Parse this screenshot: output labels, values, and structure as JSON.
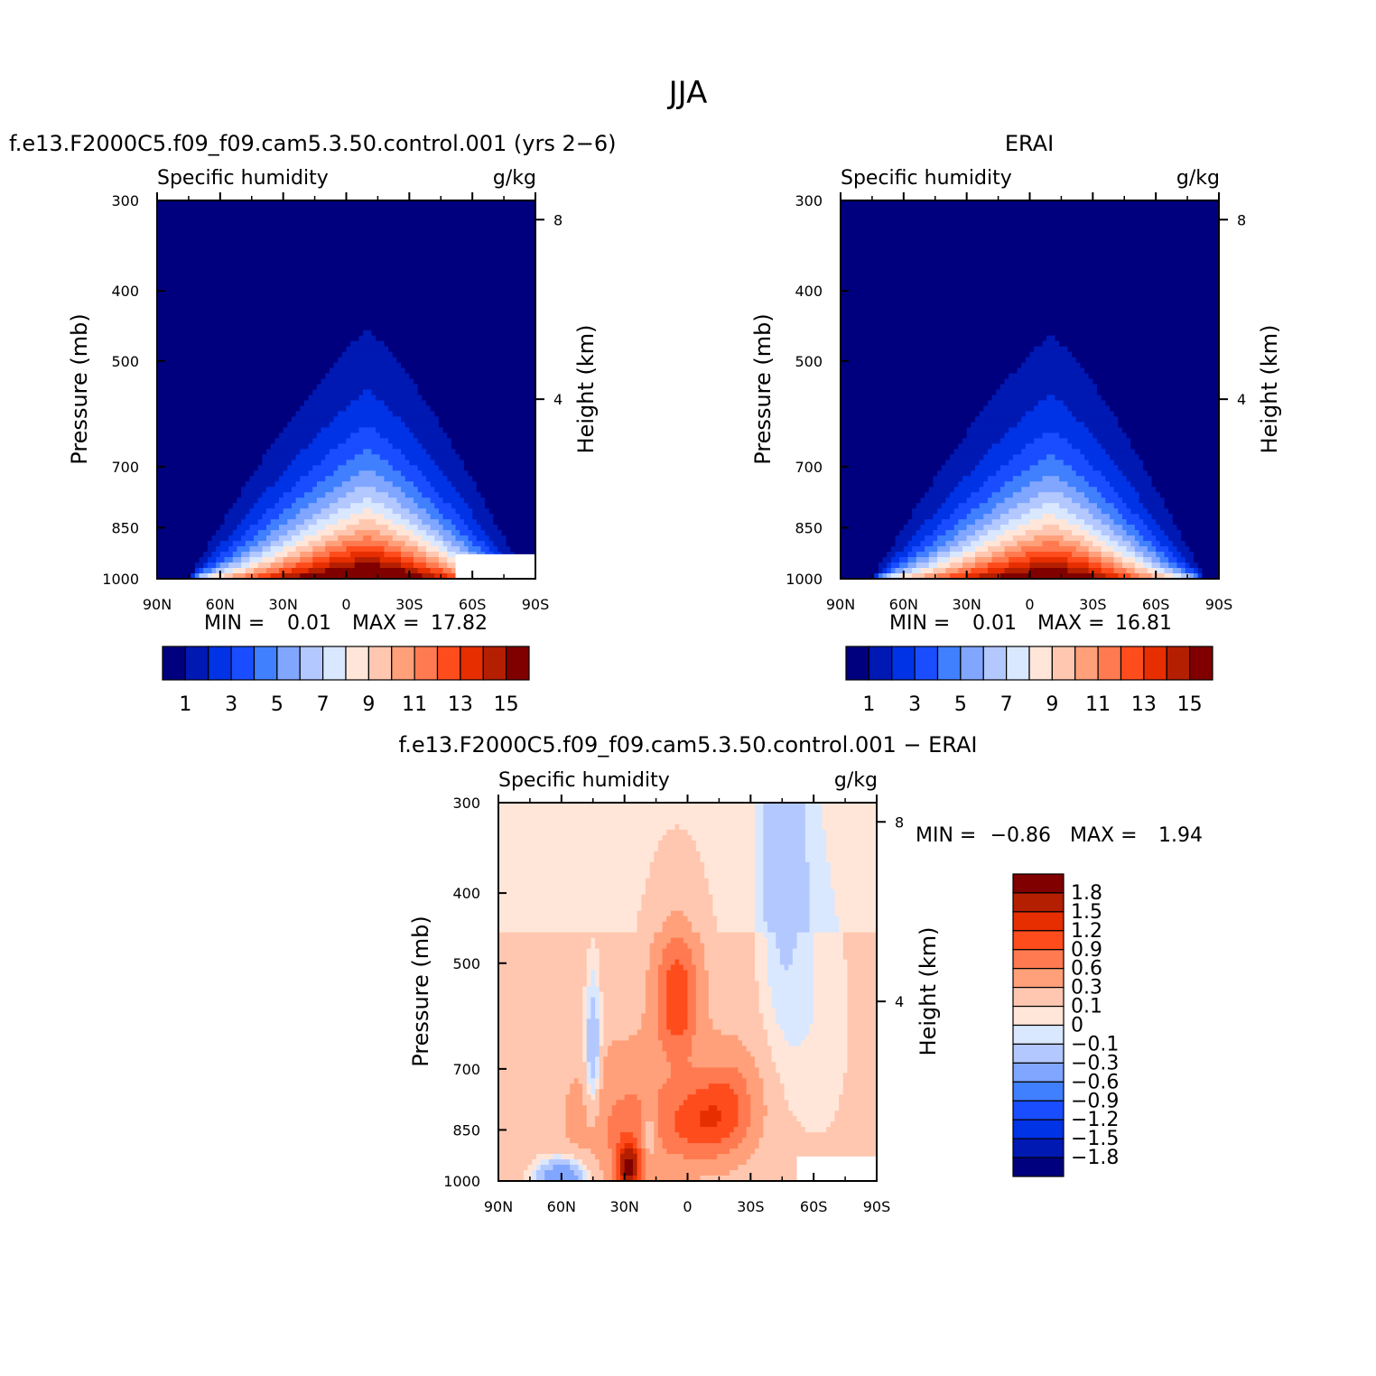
{
  "figure": {
    "main_title": "JJA"
  },
  "palettes": {
    "abs": [
      "#00007f",
      "#0019b3",
      "#0033e6",
      "#1a4dff",
      "#4080ff",
      "#80a6ff",
      "#b3c8ff",
      "#d9e8ff",
      "#ffe6d9",
      "#ffc7b0",
      "#ffa07a",
      "#ff7a50",
      "#ff4c1c",
      "#e62e00",
      "#b31f00",
      "#800000"
    ],
    "diff": [
      "#00007f",
      "#0019b3",
      "#0033e6",
      "#1a4dff",
      "#4080ff",
      "#80a6ff",
      "#b3c8ff",
      "#d9e8ff",
      "#ffe6d9",
      "#ffc7b0",
      "#ffa07a",
      "#ff7a50",
      "#ff4c1c",
      "#e62e00",
      "#b31f00",
      "#800000"
    ]
  },
  "chart_data": [
    {
      "type": "heatmap",
      "id": "model",
      "panel_title": "f.e13.F2000C5.f09_f09.cam5.3.50.control.001 (yrs 2−6)",
      "left_string": "Specific humidity",
      "right_string": "g/kg",
      "ylabel": "Pressure (mb)",
      "ylabel_right": "Height (km)",
      "xticks": [
        "90N",
        "60N",
        "30N",
        "0",
        "30S",
        "60S",
        "90S"
      ],
      "yticks": [
        "300",
        "400",
        "500",
        "700",
        "850",
        "1000"
      ],
      "yticks_right": [
        "8",
        "4"
      ],
      "min_text": "MIN =",
      "min_value": "0.01",
      "max_text": "MAX =",
      "max_value": "17.82",
      "colorbar_labels": [
        "1",
        "3",
        "5",
        "7",
        "9",
        "11",
        "13",
        "15"
      ],
      "palette": "abs",
      "ridge_lat": -10,
      "peak": 17.82,
      "width_n": 55,
      "width_s": 45,
      "missing_region": {
        "lat_from": -52,
        "lat_to": -90,
        "p_from": 925,
        "p_to": 1000
      }
    },
    {
      "type": "heatmap",
      "id": "obs",
      "panel_title": "ERAI",
      "left_string": "Specific humidity",
      "right_string": "g/kg",
      "ylabel": "Pressure (mb)",
      "ylabel_right": "Height (km)",
      "xticks": [
        "90N",
        "60N",
        "30N",
        "0",
        "30S",
        "60S",
        "90S"
      ],
      "yticks": [
        "300",
        "400",
        "500",
        "700",
        "850",
        "1000"
      ],
      "yticks_right": [
        "8",
        "4"
      ],
      "min_text": "MIN =",
      "min_value": "0.01",
      "max_text": "MAX =",
      "max_value": "16.81",
      "colorbar_labels": [
        "1",
        "3",
        "5",
        "7",
        "9",
        "11",
        "13",
        "15"
      ],
      "palette": "abs",
      "ridge_lat": -10,
      "peak": 16.81,
      "width_n": 55,
      "width_s": 43,
      "missing_region": null
    },
    {
      "type": "heatmap",
      "id": "diff",
      "panel_title": "f.e13.F2000C5.f09_f09.cam5.3.50.control.001 − ERAI",
      "left_string": "Specific humidity",
      "right_string": "g/kg",
      "ylabel": "Pressure (mb)",
      "ylabel_right": "Height (km)",
      "xticks": [
        "90N",
        "60N",
        "30N",
        "0",
        "30S",
        "60S",
        "90S"
      ],
      "yticks": [
        "300",
        "400",
        "500",
        "700",
        "850",
        "1000"
      ],
      "yticks_right": [
        "8",
        "4"
      ],
      "min_text": "MIN =",
      "min_value": "−0.86",
      "max_text": "MAX =",
      "max_value": "1.94",
      "colorbar_labels": [
        "1.8",
        "1.5",
        "1.2",
        "0.9",
        "0.6",
        "0.3",
        "0.1",
        "0",
        "−0.1",
        "−0.3",
        "−0.6",
        "−0.9",
        "−1.2",
        "−1.5",
        "−1.8"
      ],
      "palette": "diff",
      "missing_region": {
        "lat_from": -52,
        "lat_to": -90,
        "p_from": 925,
        "p_to": 1000
      }
    }
  ]
}
